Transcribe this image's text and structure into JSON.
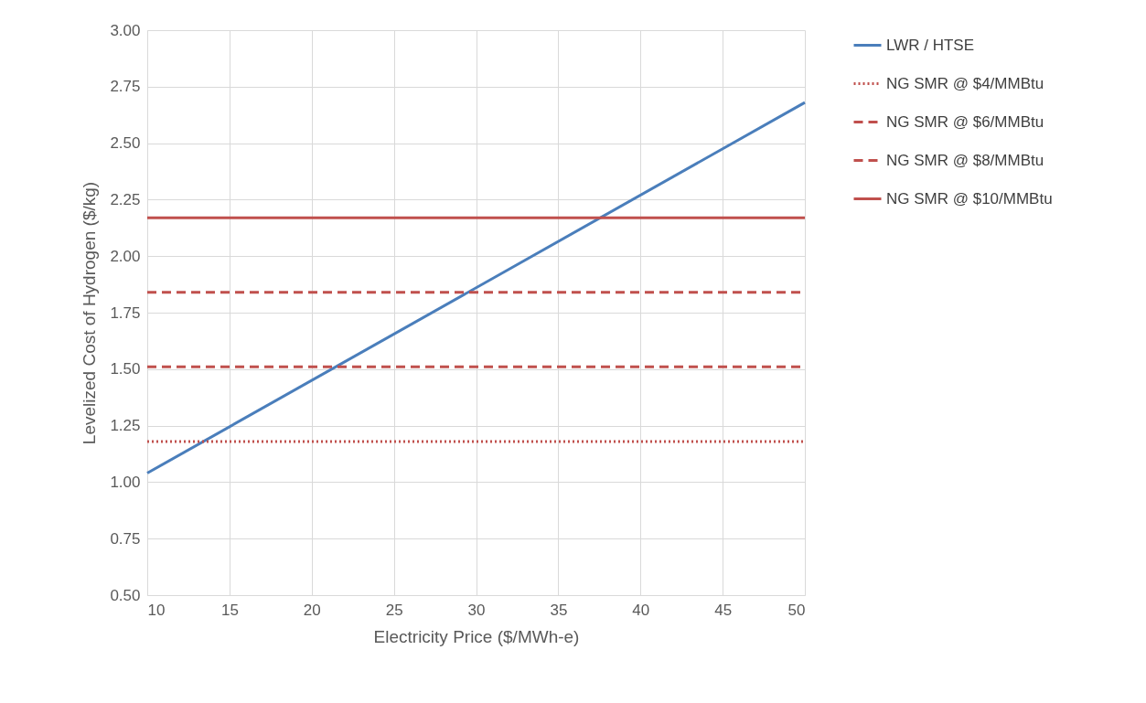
{
  "chart_data": {
    "type": "line",
    "xlabel": "Electricity Price ($/MWh-e)",
    "ylabel": "Levelized Cost of Hydrogen ($/kg)",
    "x": [
      10,
      50
    ],
    "xlim": [
      10,
      50
    ],
    "xticks": [
      10,
      15,
      20,
      25,
      30,
      35,
      40,
      45,
      50
    ],
    "ylim": [
      0.5,
      3.0
    ],
    "yticks": [
      {
        "value": 0.5,
        "label": "0.50"
      },
      {
        "value": 0.75,
        "label": "0.75"
      },
      {
        "value": 1.0,
        "label": "1.00"
      },
      {
        "value": 1.25,
        "label": "1.25"
      },
      {
        "value": 1.5,
        "label": "1.50"
      },
      {
        "value": 1.75,
        "label": "1.75"
      },
      {
        "value": 2.0,
        "label": "2.00"
      },
      {
        "value": 2.25,
        "label": "2.25"
      },
      {
        "value": 2.5,
        "label": "2.50"
      },
      {
        "value": 2.75,
        "label": "2.75"
      },
      {
        "value": 3.0,
        "label": "3.00"
      }
    ],
    "grid": true,
    "legend": "right",
    "marker": "none",
    "series": [
      {
        "name": "LWR / HTSE",
        "color": "#4a7ebb",
        "line_style": "solid",
        "values": [
          1.04,
          2.68
        ]
      },
      {
        "name": "NG SMR @ $4/MMBtu",
        "color": "#c0504d",
        "line_style": "dotted",
        "values": [
          1.18,
          1.18
        ]
      },
      {
        "name": "NG SMR @ $6/MMBtu",
        "color": "#c0504d",
        "line_style": "dashed",
        "values": [
          1.51,
          1.51
        ]
      },
      {
        "name": "NG SMR @ $8/MMBtu",
        "color": "#c0504d",
        "line_style": "dashed",
        "values": [
          1.84,
          1.84
        ]
      },
      {
        "name": "NG SMR @ $10/MMBtu",
        "color": "#c0504d",
        "line_style": "solid",
        "values": [
          2.17,
          2.17
        ]
      }
    ]
  }
}
